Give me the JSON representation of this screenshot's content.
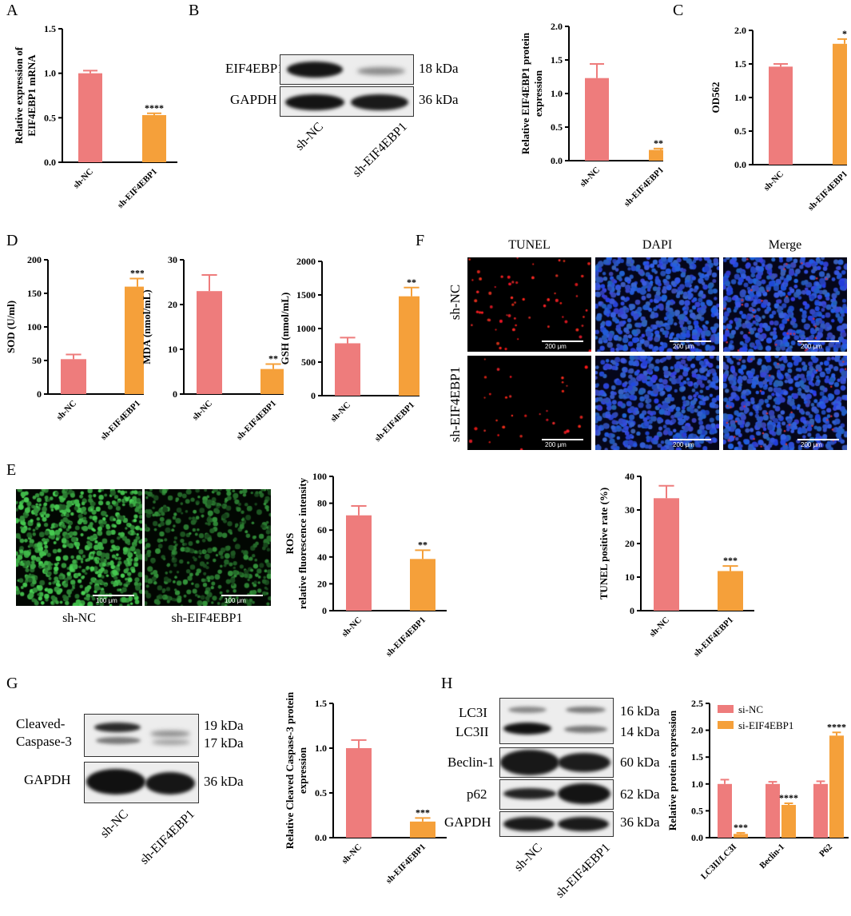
{
  "colors": {
    "nc": "#ee7c7c",
    "kd": "#f5a03a"
  },
  "panels": {
    "A": "A",
    "B": "B",
    "C": "C",
    "D": "D",
    "E": "E",
    "F": "F",
    "G": "G",
    "H": "H"
  },
  "blots": {
    "B": {
      "rows": [
        "EIF4EBP1",
        "GAPDH"
      ],
      "kda": [
        "18 kDa",
        "36 kDa"
      ],
      "lanes": [
        "sh-NC",
        "sh-EIF4EBP1"
      ]
    },
    "G": {
      "rows": [
        "Cleaved-\nCaspase-3",
        "GAPDH"
      ],
      "kda": [
        "19 kDa",
        "17 kDa",
        "36 kDa"
      ],
      "lanes": [
        "sh-NC",
        "sh-EIF4EBP1"
      ]
    },
    "H": {
      "rows": [
        "LC3I",
        "LC3II",
        "Beclin-1",
        "p62",
        "GAPDH"
      ],
      "kda": [
        "16 kDa",
        "14 kDa",
        "60 kDa",
        "62 kDa",
        "36 kDa"
      ],
      "lanes": [
        "sh-NC",
        "sh-EIF4EBP1"
      ]
    }
  },
  "microscopy": {
    "F": {
      "columns": [
        "TUNEL",
        "DAPI",
        "Merge"
      ],
      "rows": [
        "sh-NC",
        "sh-EIF4EBP1"
      ],
      "scale": "200 μm"
    },
    "E": {
      "captions": [
        "sh-NC",
        "sh-EIF4EBP1"
      ],
      "scale": "100 μm"
    }
  },
  "chart_data": [
    {
      "id": "A",
      "type": "bar",
      "categories": [
        "sh-NC",
        "sh-EIF4EBP1"
      ],
      "values": [
        1.0,
        0.53
      ],
      "errors": [
        0.03,
        0.02
      ],
      "ylabel": "Relative expression of\nEIF4EBP1 mRNA",
      "ylim": [
        0,
        1.5
      ],
      "ticks": [
        0.0,
        0.5,
        1.0,
        1.5
      ],
      "tick_labels": [
        "0.0",
        "0.5",
        "1.0",
        "1.5"
      ],
      "sig": [
        "",
        "****"
      ]
    },
    {
      "id": "B",
      "type": "bar",
      "categories": [
        "sh-NC",
        "sh-EIF4EBP1"
      ],
      "values": [
        1.23,
        0.16
      ],
      "errors": [
        0.21,
        0.02
      ],
      "ylabel": "Relative EIF4EBP1 protein\nexpression",
      "ylim": [
        0,
        2.0
      ],
      "ticks": [
        0.0,
        0.5,
        1.0,
        1.5,
        2.0
      ],
      "tick_labels": [
        "0.0",
        "0.5",
        "1.0",
        "1.5",
        "2.0"
      ],
      "sig": [
        "",
        "***"
      ]
    },
    {
      "id": "C",
      "type": "bar",
      "categories": [
        "sh-NC",
        "sh-EIF4EBP1"
      ],
      "values": [
        1.46,
        1.8
      ],
      "errors": [
        0.04,
        0.07
      ],
      "ylabel": "OD562",
      "ylim": [
        0,
        2.0
      ],
      "ticks": [
        0.0,
        0.5,
        1.0,
        1.5,
        2.0
      ],
      "tick_labels": [
        "0.0",
        "0.5",
        "1.0",
        "1.5",
        "2.0"
      ],
      "sig": [
        "",
        "*"
      ]
    },
    {
      "id": "D1",
      "type": "bar",
      "categories": [
        "sh-NC",
        "sh-EIF4EBP1"
      ],
      "values": [
        52,
        160
      ],
      "errors": [
        7,
        12
      ],
      "ylabel": "SOD (U/ml)",
      "ylim": [
        0,
        200
      ],
      "ticks": [
        0,
        50,
        100,
        150,
        200
      ],
      "tick_labels": [
        "0",
        "50",
        "100",
        "150",
        "200"
      ],
      "sig": [
        "",
        "***"
      ]
    },
    {
      "id": "D2",
      "type": "bar",
      "categories": [
        "sh-NC",
        "sh-EIF4EBP1"
      ],
      "values": [
        23,
        5.6
      ],
      "errors": [
        3.6,
        1.1
      ],
      "ylabel": "MDA (nmol/mL)",
      "ylim": [
        0,
        30
      ],
      "ticks": [
        0,
        10,
        20,
        30
      ],
      "tick_labels": [
        "0",
        "10",
        "20",
        "30"
      ],
      "sig": [
        "",
        "**"
      ]
    },
    {
      "id": "D3",
      "type": "bar",
      "categories": [
        "sh-NC",
        "sh-EIF4EBP1"
      ],
      "values": [
        780,
        1480
      ],
      "errors": [
        85,
        130
      ],
      "ylabel": "GSH (nmol/mL)",
      "ylim": [
        0,
        2000
      ],
      "ticks": [
        0,
        500,
        1000,
        1500,
        2000
      ],
      "tick_labels": [
        "0",
        "500",
        "1000",
        "1500",
        "2000"
      ],
      "sig": [
        "",
        "**"
      ]
    },
    {
      "id": "E",
      "type": "bar",
      "categories": [
        "sh-NC",
        "sh-EIF4EBP1"
      ],
      "values": [
        71,
        38.5
      ],
      "errors": [
        7,
        6.5
      ],
      "ylabel": "ROS\nrelative fluorescence intensity",
      "ylim": [
        0,
        100
      ],
      "ticks": [
        0,
        20,
        40,
        60,
        80,
        100
      ],
      "tick_labels": [
        "0",
        "20",
        "40",
        "60",
        "80",
        "100"
      ],
      "sig": [
        "",
        "**"
      ]
    },
    {
      "id": "F",
      "type": "bar",
      "categories": [
        "sh-NC",
        "sh-EIF4EBP1"
      ],
      "values": [
        33.5,
        11.8
      ],
      "errors": [
        3.7,
        1.5
      ],
      "ylabel": "TUNEL positive rate (%)",
      "ylim": [
        0,
        40
      ],
      "ticks": [
        0,
        10,
        20,
        30,
        40
      ],
      "tick_labels": [
        "0",
        "10",
        "20",
        "30",
        "40"
      ],
      "sig": [
        "",
        "***"
      ]
    },
    {
      "id": "G",
      "type": "bar",
      "categories": [
        "sh-NC",
        "sh-EIF4EBP1"
      ],
      "values": [
        1.0,
        0.18
      ],
      "errors": [
        0.09,
        0.04
      ],
      "ylabel": "Relative Cleaved Caspase-3 protein\nexpression",
      "ylim": [
        0,
        1.5
      ],
      "ticks": [
        0.0,
        0.5,
        1.0,
        1.5
      ],
      "tick_labels": [
        "0.0",
        "0.5",
        "1.0",
        "1.5"
      ],
      "sig": [
        "",
        "***"
      ]
    },
    {
      "id": "H",
      "type": "bar",
      "categories": [
        "LC3II/LC3I",
        "Beclin-1",
        "P62"
      ],
      "series": [
        {
          "name": "si-NC",
          "values": [
            1.0,
            1.0,
            1.0
          ],
          "errors": [
            0.08,
            0.04,
            0.05
          ],
          "sig": [
            "",
            "",
            ""
          ]
        },
        {
          "name": "si-EIF4EBP1",
          "values": [
            0.07,
            0.61,
            1.9
          ],
          "errors": [
            0.02,
            0.03,
            0.06
          ],
          "sig": [
            "***",
            "****",
            "****"
          ]
        }
      ],
      "ylabel": "Relative protein expression",
      "ylim": [
        0,
        2.5
      ],
      "ticks": [
        0.0,
        0.5,
        1.0,
        1.5,
        2.0,
        2.5
      ],
      "tick_labels": [
        "0.0",
        "0.5",
        "1.0",
        "1.5",
        "2.0",
        "2.5"
      ],
      "legend": "top-left"
    }
  ]
}
